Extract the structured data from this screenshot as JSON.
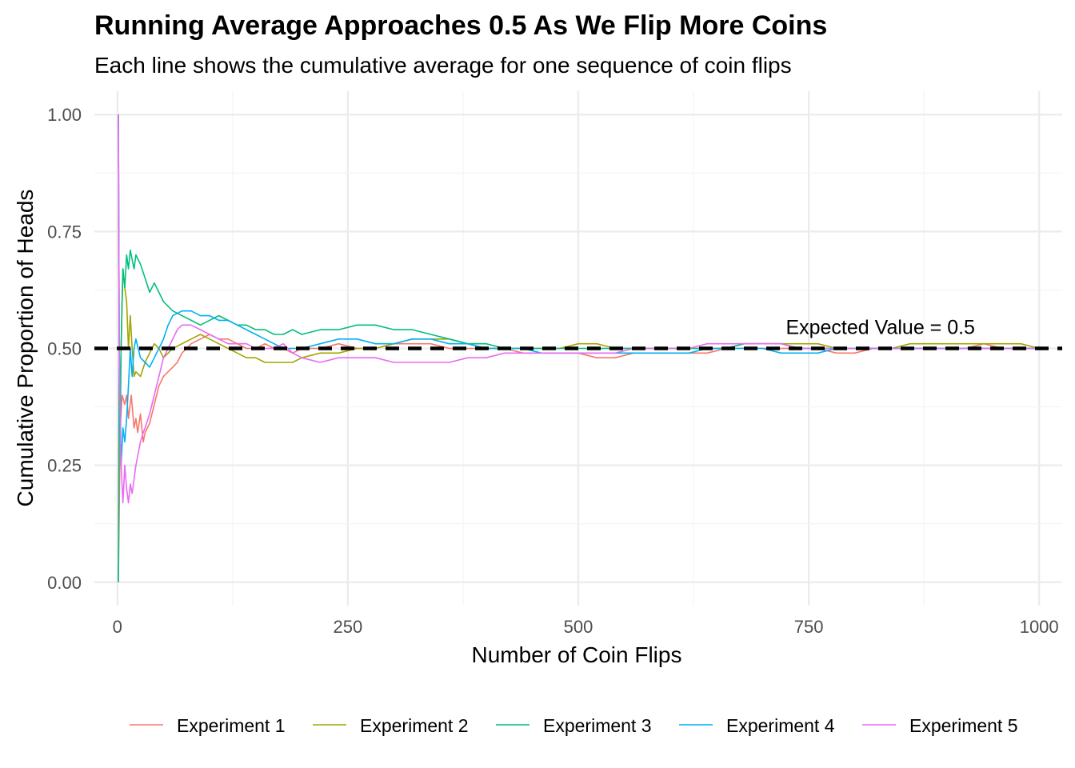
{
  "chart_data": {
    "type": "line",
    "title": "Running Average Approaches 0.5 As We Flip More Coins",
    "subtitle": "Each line shows the cumulative average for one sequence of coin flips",
    "xlabel": "Number of Coin Flips",
    "ylabel": "Cumulative Proportion of Heads",
    "xlim": [
      -25,
      1025
    ],
    "ylim": [
      -0.05,
      1.05
    ],
    "x_ticks": [
      0,
      250,
      500,
      750,
      1000
    ],
    "x_tick_labels": [
      "0",
      "250",
      "500",
      "750",
      "1000"
    ],
    "y_ticks": [
      0,
      0.25,
      0.5,
      0.75,
      1.0
    ],
    "y_tick_labels": [
      "0.00",
      "0.25",
      "0.50",
      "0.75",
      "1.00"
    ],
    "grid": true,
    "legend_position": "bottom",
    "reference_line": {
      "y": 0.5,
      "style": "dashed",
      "color": "#000000"
    },
    "annotation": {
      "text": "Expected Value = 0.5",
      "x": 800,
      "y": 0.5
    },
    "series": [
      {
        "name": "Experiment 1",
        "color": "#F8766D",
        "x": [
          1,
          3,
          5,
          8,
          10,
          12,
          15,
          18,
          20,
          22,
          25,
          28,
          30,
          35,
          40,
          45,
          50,
          55,
          60,
          65,
          70,
          75,
          80,
          90,
          100,
          110,
          120,
          130,
          140,
          150,
          160,
          170,
          180,
          190,
          200,
          220,
          240,
          260,
          280,
          300,
          320,
          340,
          360,
          380,
          400,
          420,
          440,
          460,
          480,
          500,
          520,
          540,
          560,
          580,
          600,
          620,
          640,
          660,
          680,
          700,
          720,
          740,
          760,
          780,
          800,
          820,
          840,
          860,
          880,
          900,
          920,
          940,
          960,
          980,
          1000
        ],
        "y": [
          0.0,
          0.33,
          0.4,
          0.38,
          0.4,
          0.35,
          0.4,
          0.33,
          0.35,
          0.32,
          0.36,
          0.3,
          0.32,
          0.34,
          0.38,
          0.42,
          0.44,
          0.45,
          0.46,
          0.47,
          0.49,
          0.5,
          0.51,
          0.52,
          0.53,
          0.52,
          0.52,
          0.51,
          0.5,
          0.5,
          0.51,
          0.5,
          0.5,
          0.49,
          0.5,
          0.5,
          0.51,
          0.5,
          0.5,
          0.51,
          0.51,
          0.51,
          0.5,
          0.5,
          0.5,
          0.5,
          0.49,
          0.49,
          0.49,
          0.49,
          0.48,
          0.48,
          0.49,
          0.49,
          0.49,
          0.49,
          0.49,
          0.5,
          0.5,
          0.5,
          0.5,
          0.5,
          0.5,
          0.49,
          0.49,
          0.5,
          0.5,
          0.5,
          0.5,
          0.5,
          0.5,
          0.51,
          0.5,
          0.5,
          0.5
        ]
      },
      {
        "name": "Experiment 2",
        "color": "#A3A500",
        "x": [
          1,
          2,
          4,
          6,
          8,
          10,
          12,
          14,
          16,
          18,
          20,
          25,
          30,
          35,
          40,
          45,
          50,
          55,
          60,
          70,
          80,
          90,
          100,
          110,
          120,
          130,
          140,
          150,
          160,
          170,
          180,
          190,
          200,
          220,
          240,
          260,
          280,
          300,
          320,
          340,
          360,
          380,
          400,
          420,
          440,
          460,
          480,
          500,
          520,
          540,
          560,
          580,
          600,
          620,
          640,
          660,
          680,
          700,
          720,
          740,
          760,
          780,
          800,
          820,
          840,
          860,
          880,
          900,
          920,
          940,
          960,
          980,
          1000
        ],
        "y": [
          1.0,
          0.5,
          0.5,
          0.67,
          0.63,
          0.6,
          0.5,
          0.57,
          0.5,
          0.44,
          0.45,
          0.44,
          0.47,
          0.49,
          0.51,
          0.5,
          0.48,
          0.49,
          0.5,
          0.51,
          0.52,
          0.53,
          0.52,
          0.51,
          0.5,
          0.49,
          0.48,
          0.48,
          0.47,
          0.47,
          0.47,
          0.47,
          0.48,
          0.49,
          0.49,
          0.5,
          0.5,
          0.51,
          0.52,
          0.52,
          0.52,
          0.51,
          0.5,
          0.5,
          0.5,
          0.5,
          0.5,
          0.51,
          0.51,
          0.5,
          0.5,
          0.5,
          0.5,
          0.5,
          0.5,
          0.5,
          0.51,
          0.51,
          0.51,
          0.51,
          0.51,
          0.5,
          0.5,
          0.5,
          0.5,
          0.51,
          0.51,
          0.51,
          0.51,
          0.51,
          0.51,
          0.51,
          0.5
        ]
      },
      {
        "name": "Experiment 3",
        "color": "#00BF7D",
        "x": [
          1,
          2,
          3,
          4,
          5,
          6,
          8,
          10,
          12,
          14,
          16,
          18,
          20,
          25,
          30,
          35,
          40,
          45,
          50,
          55,
          60,
          70,
          80,
          90,
          100,
          110,
          120,
          130,
          140,
          150,
          160,
          170,
          180,
          190,
          200,
          220,
          240,
          260,
          280,
          300,
          320,
          340,
          360,
          380,
          400,
          420,
          440,
          460,
          480,
          500,
          520,
          540,
          560,
          580,
          600,
          620,
          640,
          660,
          680,
          700,
          720,
          740,
          760,
          780,
          800,
          820,
          840,
          860,
          880,
          900,
          920,
          940,
          960,
          980,
          1000
        ],
        "y": [
          0.0,
          0.5,
          0.33,
          0.5,
          0.6,
          0.67,
          0.63,
          0.7,
          0.67,
          0.71,
          0.69,
          0.67,
          0.7,
          0.68,
          0.65,
          0.62,
          0.64,
          0.62,
          0.6,
          0.59,
          0.58,
          0.57,
          0.56,
          0.55,
          0.56,
          0.57,
          0.56,
          0.55,
          0.55,
          0.54,
          0.54,
          0.53,
          0.53,
          0.54,
          0.53,
          0.54,
          0.54,
          0.55,
          0.55,
          0.54,
          0.54,
          0.53,
          0.52,
          0.51,
          0.51,
          0.5,
          0.5,
          0.5,
          0.5,
          0.5,
          0.5,
          0.5,
          0.5,
          0.5,
          0.5,
          0.5,
          0.5,
          0.5,
          0.51,
          0.51,
          0.51,
          0.5,
          0.5,
          0.5,
          0.5,
          0.5,
          0.5,
          0.5,
          0.5,
          0.5,
          0.5,
          0.5,
          0.5,
          0.5,
          0.5
        ]
      },
      {
        "name": "Experiment 4",
        "color": "#00B0F6",
        "x": [
          1,
          2,
          4,
          6,
          8,
          10,
          12,
          14,
          16,
          18,
          20,
          25,
          30,
          35,
          40,
          45,
          50,
          55,
          60,
          70,
          80,
          90,
          100,
          110,
          120,
          130,
          140,
          150,
          160,
          170,
          180,
          190,
          200,
          220,
          240,
          260,
          280,
          300,
          320,
          340,
          360,
          380,
          400,
          420,
          440,
          460,
          480,
          500,
          520,
          540,
          560,
          580,
          600,
          620,
          640,
          660,
          680,
          700,
          720,
          740,
          760,
          780,
          800,
          820,
          840,
          860,
          880,
          900,
          920,
          940,
          960,
          980,
          1000
        ],
        "y": [
          1.0,
          0.5,
          0.25,
          0.33,
          0.3,
          0.35,
          0.42,
          0.5,
          0.44,
          0.5,
          0.52,
          0.48,
          0.47,
          0.46,
          0.48,
          0.5,
          0.52,
          0.55,
          0.57,
          0.58,
          0.58,
          0.57,
          0.57,
          0.56,
          0.56,
          0.55,
          0.54,
          0.53,
          0.52,
          0.51,
          0.5,
          0.5,
          0.5,
          0.51,
          0.52,
          0.52,
          0.51,
          0.51,
          0.52,
          0.52,
          0.51,
          0.51,
          0.5,
          0.5,
          0.5,
          0.49,
          0.49,
          0.49,
          0.49,
          0.49,
          0.49,
          0.49,
          0.49,
          0.49,
          0.5,
          0.5,
          0.5,
          0.5,
          0.49,
          0.49,
          0.49,
          0.5,
          0.5,
          0.5,
          0.5,
          0.5,
          0.5,
          0.5,
          0.5,
          0.5,
          0.5,
          0.5,
          0.5
        ]
      },
      {
        "name": "Experiment 5",
        "color": "#E76BF3",
        "x": [
          1,
          2,
          3,
          4,
          6,
          8,
          10,
          12,
          14,
          16,
          18,
          20,
          22,
          25,
          28,
          30,
          35,
          40,
          45,
          50,
          55,
          60,
          65,
          70,
          80,
          90,
          100,
          110,
          120,
          130,
          140,
          150,
          160,
          170,
          180,
          190,
          200,
          220,
          240,
          260,
          280,
          300,
          320,
          340,
          360,
          380,
          400,
          420,
          440,
          460,
          480,
          500,
          520,
          540,
          560,
          580,
          600,
          620,
          640,
          660,
          680,
          700,
          720,
          740,
          760,
          780,
          800,
          820,
          840,
          860,
          880,
          900,
          920,
          940,
          960,
          980,
          1000
        ],
        "y": [
          1.0,
          0.5,
          0.33,
          0.25,
          0.17,
          0.25,
          0.2,
          0.17,
          0.21,
          0.19,
          0.22,
          0.25,
          0.27,
          0.3,
          0.32,
          0.33,
          0.36,
          0.4,
          0.44,
          0.48,
          0.5,
          0.52,
          0.54,
          0.55,
          0.55,
          0.54,
          0.53,
          0.52,
          0.51,
          0.51,
          0.51,
          0.5,
          0.5,
          0.5,
          0.51,
          0.49,
          0.48,
          0.47,
          0.48,
          0.48,
          0.48,
          0.47,
          0.47,
          0.47,
          0.47,
          0.48,
          0.48,
          0.49,
          0.49,
          0.49,
          0.49,
          0.49,
          0.49,
          0.49,
          0.5,
          0.5,
          0.5,
          0.5,
          0.51,
          0.51,
          0.51,
          0.51,
          0.51,
          0.5,
          0.5,
          0.5,
          0.5,
          0.5,
          0.5,
          0.5,
          0.5,
          0.5,
          0.5,
          0.5,
          0.5,
          0.5,
          0.5
        ]
      }
    ]
  }
}
